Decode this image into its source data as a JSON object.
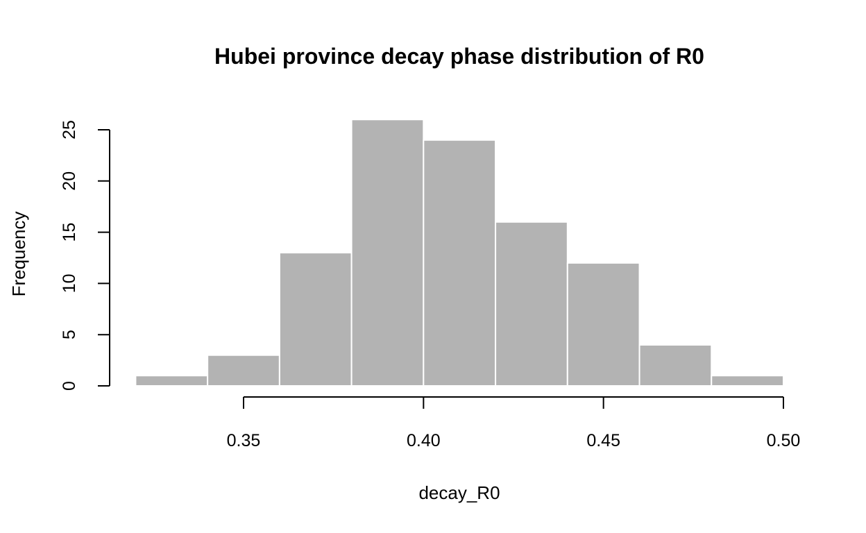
{
  "chart_data": {
    "type": "bar",
    "histogram": true,
    "title": "Hubei province decay phase distribution of R0",
    "xlabel": "decay_R0",
    "ylabel": "Frequency",
    "bins": [
      {
        "start": 0.32,
        "end": 0.34,
        "count": 1
      },
      {
        "start": 0.34,
        "end": 0.36,
        "count": 3
      },
      {
        "start": 0.36,
        "end": 0.38,
        "count": 13
      },
      {
        "start": 0.38,
        "end": 0.4,
        "count": 26
      },
      {
        "start": 0.4,
        "end": 0.42,
        "count": 24
      },
      {
        "start": 0.42,
        "end": 0.44,
        "count": 16
      },
      {
        "start": 0.44,
        "end": 0.46,
        "count": 12
      },
      {
        "start": 0.46,
        "end": 0.48,
        "count": 4
      },
      {
        "start": 0.48,
        "end": 0.5,
        "count": 1
      }
    ],
    "xticks": [
      {
        "value": 0.35,
        "label": "0.35"
      },
      {
        "value": 0.4,
        "label": "0.40"
      },
      {
        "value": 0.45,
        "label": "0.45"
      },
      {
        "value": 0.5,
        "label": "0.50"
      }
    ],
    "yticks": [
      {
        "value": 0,
        "label": "0"
      },
      {
        "value": 5,
        "label": "5"
      },
      {
        "value": 10,
        "label": "10"
      },
      {
        "value": 15,
        "label": "15"
      },
      {
        "value": 20,
        "label": "20"
      },
      {
        "value": 25,
        "label": "25"
      }
    ],
    "xlim": [
      0.35,
      0.5
    ],
    "ylim": [
      0,
      25
    ],
    "grid": false,
    "bar_color": "#b3b3b3",
    "bar_border_color": "#ffffff"
  }
}
